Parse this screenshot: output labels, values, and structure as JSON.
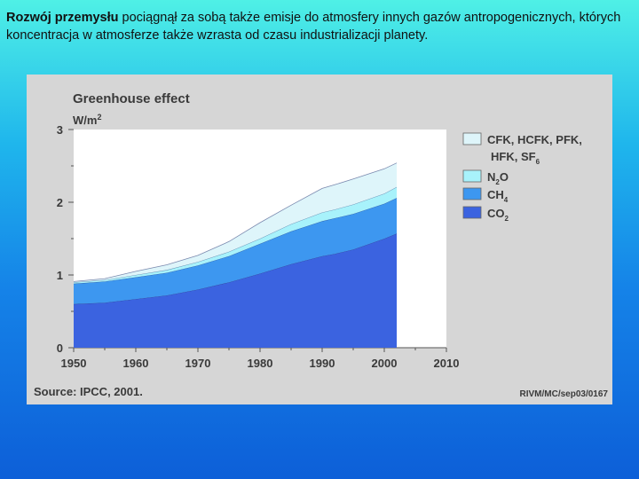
{
  "slide": {
    "text_bold": "Rozwój przemysłu",
    "text_rest": " pociągnął za sobą także emisje do atmosfery innych gazów antropogenicznych, których koncentracja w atmosferze także wzrasta od czasu industrializacji planety."
  },
  "chart_data": {
    "type": "area",
    "stacked": true,
    "title": "Greenhouse effect",
    "ylabel": "W/m²",
    "xlim": [
      1950,
      2010
    ],
    "ylim": [
      0,
      3
    ],
    "xticks": [
      1950,
      1960,
      1970,
      1980,
      1990,
      2000,
      2010
    ],
    "yticks": [
      0,
      1,
      2,
      3
    ],
    "x": [
      1950,
      1955,
      1960,
      1965,
      1970,
      1975,
      1980,
      1985,
      1990,
      1992,
      1995,
      2000,
      2002
    ],
    "series": [
      {
        "name": "CO2",
        "color": "#3b63e0",
        "values": [
          0.6,
          0.62,
          0.67,
          0.72,
          0.8,
          0.9,
          1.02,
          1.15,
          1.26,
          1.29,
          1.35,
          1.5,
          1.57
        ]
      },
      {
        "name": "CH4",
        "color": "#3d97f0",
        "values": [
          0.28,
          0.29,
          0.3,
          0.31,
          0.33,
          0.36,
          0.41,
          0.45,
          0.48,
          0.49,
          0.49,
          0.48,
          0.49
        ]
      },
      {
        "name": "N2O",
        "color": "#a8f2fb",
        "values": [
          0.02,
          0.02,
          0.03,
          0.04,
          0.05,
          0.06,
          0.07,
          0.1,
          0.12,
          0.12,
          0.13,
          0.14,
          0.15
        ]
      },
      {
        "name": "CFK, HCFK, PFK, HFK, SF6",
        "color": "#def5fa",
        "values": [
          0.01,
          0.02,
          0.05,
          0.07,
          0.09,
          0.14,
          0.22,
          0.26,
          0.33,
          0.34,
          0.35,
          0.34,
          0.33
        ]
      }
    ],
    "legend": [
      {
        "label": "CFK, HCFK, PFK,",
        "label2": "HFK, SF",
        "sub": "6",
        "color": "#def5fa"
      },
      {
        "label": "N",
        "sub": "2",
        "label_after": "O",
        "color": "#a8f2fb"
      },
      {
        "label": "CH",
        "sub": "4",
        "color": "#3d97f0"
      },
      {
        "label": "CO",
        "sub": "2",
        "color": "#3b63e0"
      }
    ],
    "legend_position": "right",
    "source": "Source: IPCC, 2001.",
    "code": "RIVM/MC/sep03/0167"
  }
}
